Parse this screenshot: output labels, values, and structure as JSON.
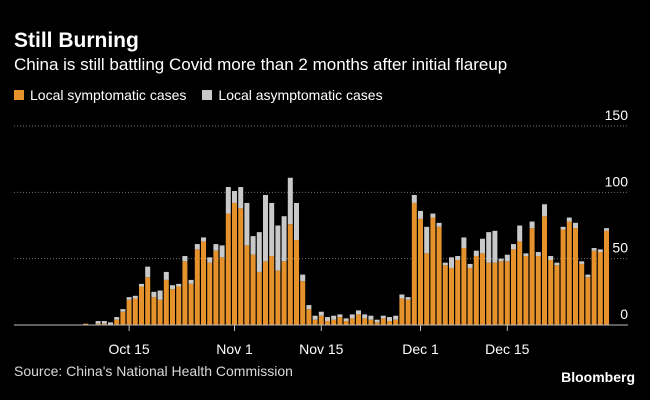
{
  "chart_data": {
    "type": "bar",
    "stacked": true,
    "title": "Still Burning",
    "subtitle": "China is still battling Covid more than 2 months after initial flareup",
    "series": [
      {
        "name": "Local symptomatic cases",
        "color": "#e5922d",
        "values": [
          0,
          0,
          0,
          0,
          0,
          0,
          1,
          0,
          1,
          1,
          0,
          4,
          10,
          19,
          20,
          29,
          36,
          21,
          19,
          34,
          27,
          29,
          48,
          31,
          57,
          63,
          47,
          56,
          51,
          84,
          92,
          88,
          60,
          53,
          40,
          48,
          52,
          41,
          48,
          76,
          64,
          33,
          12,
          4,
          7,
          3,
          4,
          6,
          3,
          5,
          8,
          5,
          4,
          2,
          5,
          3,
          4,
          20,
          19,
          92,
          80,
          54,
          81,
          74,
          45,
          43,
          49,
          58,
          43,
          52,
          54,
          47,
          47,
          48,
          48,
          57,
          63,
          52,
          73,
          52,
          82,
          49,
          45,
          72,
          78,
          73,
          46,
          36,
          56,
          55,
          71
        ]
      },
      {
        "name": "Local asymptomatic cases",
        "color": "#c9c9c9",
        "values": [
          0,
          0,
          0,
          0,
          0,
          0,
          0,
          0,
          2,
          2,
          2,
          2,
          2,
          2,
          2,
          2,
          8,
          4,
          7,
          6,
          3,
          2,
          4,
          3,
          4,
          3,
          4,
          5,
          9,
          20,
          9,
          16,
          32,
          14,
          30,
          50,
          40,
          34,
          34,
          35,
          28,
          5,
          3,
          3,
          3,
          3,
          3,
          2,
          2,
          3,
          3,
          3,
          3,
          2,
          2,
          3,
          3,
          3,
          2,
          6,
          6,
          20,
          3,
          3,
          2,
          8,
          3,
          8,
          3,
          4,
          11,
          23,
          24,
          2,
          5,
          4,
          12,
          2,
          5,
          3,
          9,
          3,
          2,
          2,
          3,
          4,
          2,
          2,
          2,
          2,
          2
        ]
      }
    ],
    "x_tick_labels": [
      {
        "label": "Oct 15",
        "index": 13
      },
      {
        "label": "Nov 1",
        "index": 30
      },
      {
        "label": "Nov 15",
        "index": 44
      },
      {
        "label": "Dec 1",
        "index": 60
      },
      {
        "label": "Dec 15",
        "index": 74
      }
    ],
    "y_ticks": [
      0,
      50,
      100,
      150
    ],
    "ylim": [
      0,
      150
    ],
    "grid": true,
    "legend_placement": "top-left"
  },
  "legend": {
    "symptomatic": "Local symptomatic cases",
    "asymptomatic": "Local asymptomatic cases"
  },
  "source": "Source: China's National Health Commission",
  "brand": "Bloomberg"
}
